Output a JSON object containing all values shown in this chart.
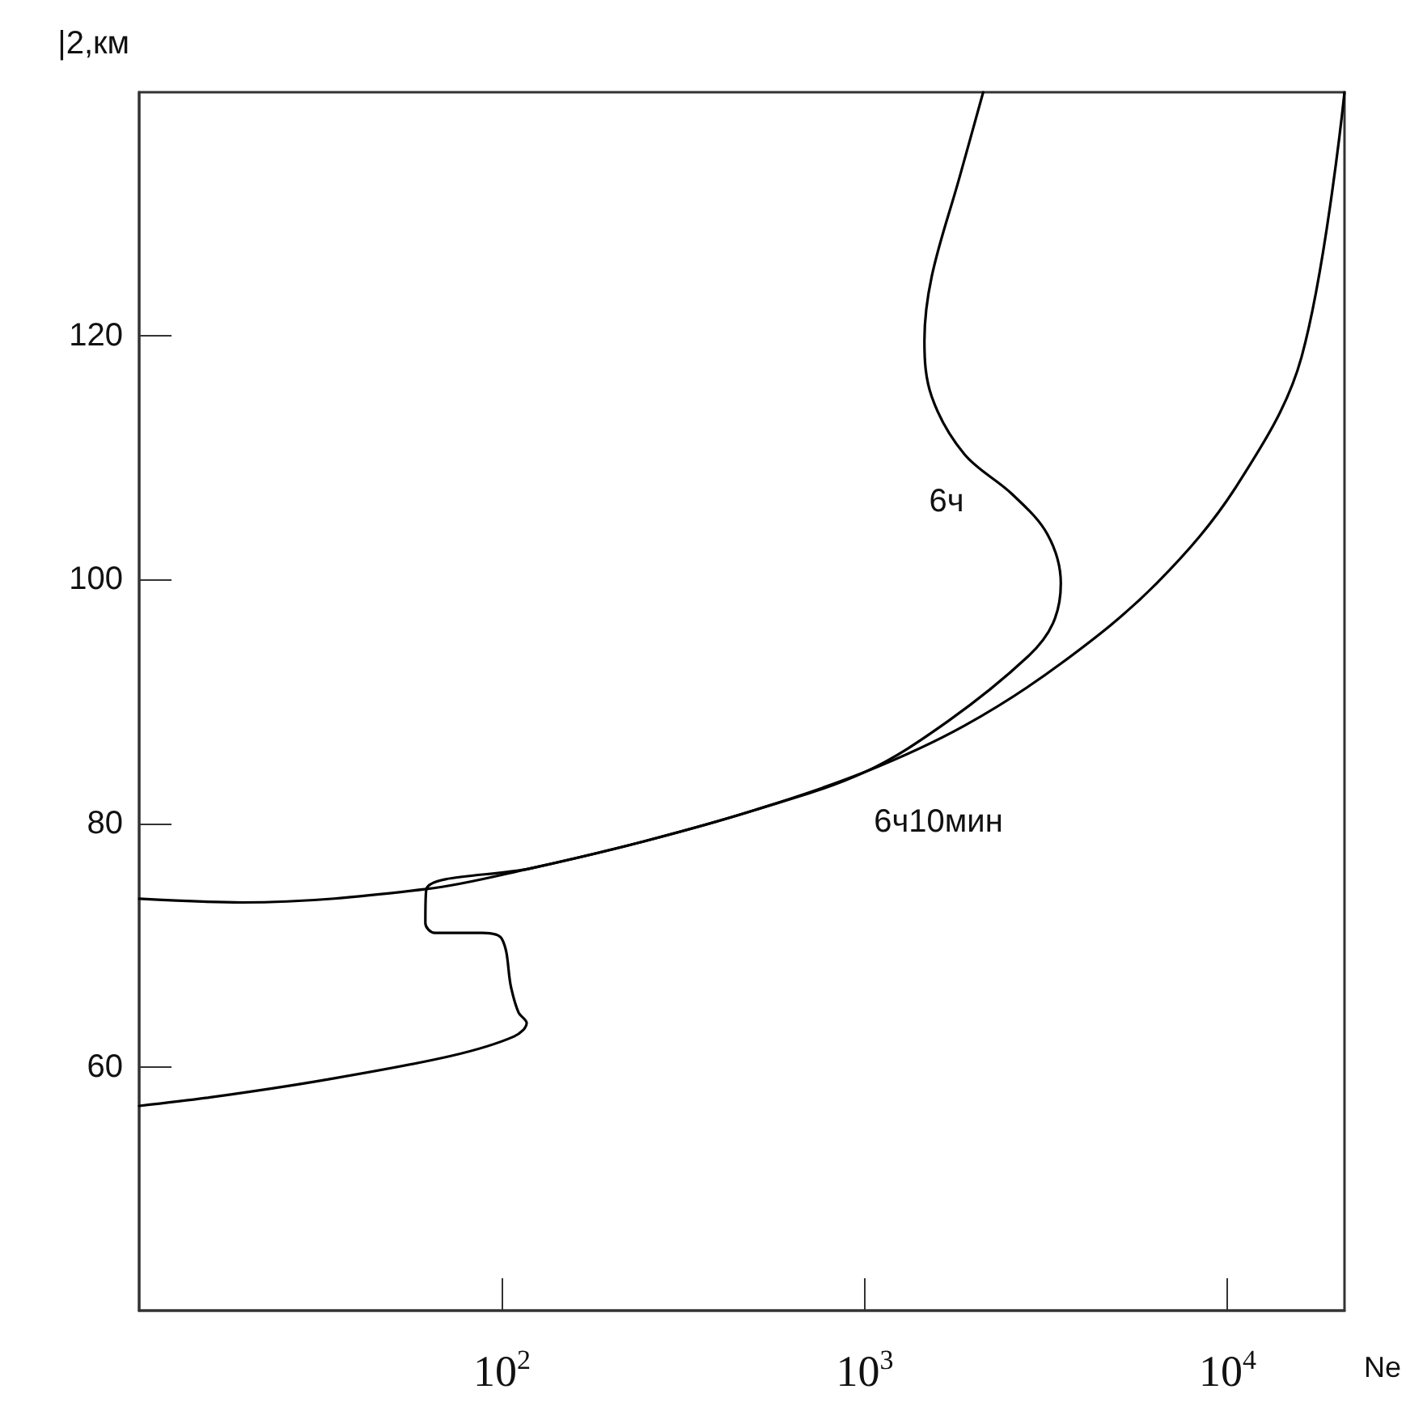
{
  "chart_data": {
    "type": "line",
    "xlabel": "Ne",
    "ylabel": "|2,км",
    "log": "x",
    "xlim": [
      10,
      21000
    ],
    "xticks": [
      {
        "value": 100,
        "label": "10$^{2}$"
      },
      {
        "value": 1000,
        "label": "10$^{3}$"
      },
      {
        "value": 10000,
        "label": "10$^{4}$"
      }
    ],
    "ylim": [
      40,
      140
    ],
    "yticks": [
      60,
      80,
      100,
      120
    ],
    "grid": false,
    "marker": "none",
    "line_style": "solid",
    "series": [
      {
        "color": "#000000",
        "x": [
          10,
          19.2,
          61.9,
          120,
          245,
          500,
          1000,
          1880,
          3470,
          6380,
          10600,
          16000,
          21000
        ],
        "values": [
          73.8,
          73.5,
          74.6,
          76.3,
          78.5,
          81.1,
          84.2,
          88.0,
          93.1,
          99.7,
          107.7,
          118.3,
          140
        ]
      },
      {
        "color": "#000000",
        "x": [
          2120,
          1820,
          1530,
          1460,
          1530,
          1880,
          2550,
          3190,
          3470,
          3300,
          2820,
          1700,
          1000,
          500,
          245,
          120,
          61.9,
          61.5,
          65.3,
          88.3,
          100,
          106,
          111,
          117,
          108,
          72.3,
          32.0,
          15.7,
          10
        ],
        "values": [
          140,
          132.9,
          124.9,
          119.6,
          115.0,
          110.3,
          107.0,
          103.7,
          99.7,
          96.4,
          93.7,
          88.4,
          84.2,
          81.1,
          78.5,
          76.3,
          74.6,
          71.8,
          71.0,
          71.0,
          70.5,
          66.5,
          64.5,
          63.6,
          62.5,
          60.9,
          58.9,
          57.5,
          56.8
        ]
      }
    ],
    "annotations": [
      "6ч",
      "6ч10мин"
    ]
  }
}
